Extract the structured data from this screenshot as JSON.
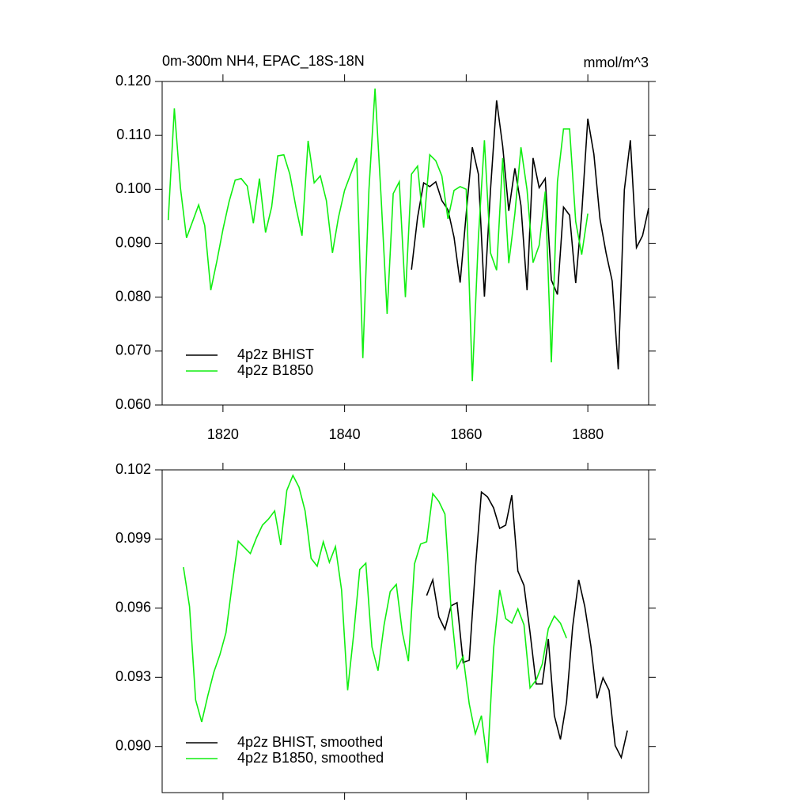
{
  "chart_data": [
    {
      "type": "line",
      "title": "0m-300m NH4, EPAC_18S-18N",
      "units": "mmol/m^3",
      "xlim": [
        1810,
        1890
      ],
      "xticks": [
        1820,
        1840,
        1860,
        1880
      ],
      "xtick_labels": true,
      "ylim": [
        0.06,
        0.12
      ],
      "yticks": [
        {
          "value": 0.06,
          "label": "0.060"
        },
        {
          "value": 0.07,
          "label": "0.070"
        },
        {
          "value": 0.08,
          "label": "0.080"
        },
        {
          "value": 0.09,
          "label": "0.090"
        },
        {
          "value": 0.1,
          "label": "0.100"
        },
        {
          "value": 0.11,
          "label": "0.110"
        },
        {
          "value": 0.12,
          "label": "0.120"
        }
      ],
      "legend": "lower left",
      "series": [
        {
          "name": "4p2z BHIST",
          "color": "#000000",
          "x": [
            1851,
            1852,
            1853,
            1854,
            1855,
            1856,
            1857,
            1858,
            1859,
            1860,
            1861,
            1862,
            1863,
            1864,
            1865,
            1866,
            1867,
            1868,
            1869,
            1870,
            1871,
            1872,
            1873,
            1874,
            1875,
            1876,
            1877,
            1878,
            1879,
            1880,
            1881,
            1882,
            1883,
            1884,
            1885,
            1886,
            1887,
            1888,
            1889,
            1890
          ],
          "values": [
            0.0851,
            0.0948,
            0.1012,
            0.1005,
            0.1014,
            0.0979,
            0.0962,
            0.0911,
            0.0827,
            0.0955,
            0.1078,
            0.1028,
            0.0801,
            0.0999,
            0.1165,
            0.108,
            0.096,
            0.1039,
            0.097,
            0.0813,
            0.1058,
            0.1003,
            0.102,
            0.0832,
            0.0805,
            0.0967,
            0.0952,
            0.0826,
            0.0955,
            0.1131,
            0.1065,
            0.0945,
            0.0882,
            0.083,
            0.0666,
            0.0999,
            0.1091,
            0.0892,
            0.0914,
            0.0965
          ]
        },
        {
          "name": "4p2z B1850",
          "color": "#11ee11",
          "x": [
            1811,
            1812,
            1813,
            1814,
            1815,
            1816,
            1817,
            1818,
            1819,
            1820,
            1821,
            1822,
            1823,
            1824,
            1825,
            1826,
            1827,
            1828,
            1829,
            1830,
            1831,
            1832,
            1833,
            1834,
            1835,
            1836,
            1837,
            1838,
            1839,
            1840,
            1841,
            1842,
            1843,
            1844,
            1845,
            1846,
            1847,
            1848,
            1849,
            1850,
            1851,
            1852,
            1853,
            1854,
            1855,
            1856,
            1857,
            1858,
            1859,
            1860,
            1861,
            1862,
            1863,
            1864,
            1865,
            1866,
            1867,
            1868,
            1869,
            1870,
            1871,
            1872,
            1873,
            1874,
            1875,
            1876,
            1877,
            1878,
            1879,
            1880
          ],
          "values": [
            0.0943,
            0.115,
            0.1003,
            0.091,
            0.094,
            0.0971,
            0.0933,
            0.0813,
            0.0867,
            0.0926,
            0.0977,
            0.1017,
            0.102,
            0.1006,
            0.0937,
            0.102,
            0.092,
            0.0967,
            0.1062,
            0.1064,
            0.1028,
            0.0967,
            0.0914,
            0.109,
            0.1012,
            0.1025,
            0.0979,
            0.0882,
            0.0948,
            0.0998,
            0.1028,
            0.1058,
            0.0687,
            0.0999,
            0.1187,
            0.0985,
            0.0769,
            0.0992,
            0.1014,
            0.08,
            0.1028,
            0.1043,
            0.0929,
            0.1064,
            0.1053,
            0.1025,
            0.0945,
            0.0998,
            0.1005,
            0.1,
            0.0644,
            0.0911,
            0.1091,
            0.0882,
            0.085,
            0.1058,
            0.0863,
            0.0955,
            0.1078,
            0.0999,
            0.0864,
            0.0896,
            0.0996,
            0.0679,
            0.1014,
            0.1112,
            0.1112,
            0.094,
            0.0879,
            0.0955
          ]
        }
      ]
    },
    {
      "type": "line",
      "xlim": [
        1810,
        1890
      ],
      "xticks": [
        1820,
        1840,
        1860,
        1880
      ],
      "xtick_labels": false,
      "ylim": [
        0.088,
        0.102
      ],
      "yticks": [
        {
          "value": 0.09,
          "label": "0.090"
        },
        0.093,
        0.096,
        0.099,
        0.102
      ],
      "legend": "lower left",
      "series": [
        {
          "name": "4p2z BHIST, smoothed",
          "color": "#000000",
          "x": [
            1853.5,
            1854.5,
            1855.5,
            1856.5,
            1857.5,
            1858.5,
            1859.5,
            1860.5,
            1861.5,
            1862.5,
            1863.5,
            1864.5,
            1865.5,
            1866.5,
            1867.5,
            1868.5,
            1869.5,
            1870.5,
            1871.5,
            1872.5,
            1873.5,
            1874.5,
            1875.5,
            1876.5,
            1877.5,
            1878.5,
            1879.5,
            1880.5,
            1881.5,
            1882.5,
            1883.5,
            1884.5,
            1885.5,
            1886.5
          ],
          "values": [
            0.09655,
            0.09723,
            0.09562,
            0.09508,
            0.0961,
            0.09624,
            0.09364,
            0.09374,
            0.09768,
            0.10104,
            0.10083,
            0.10035,
            0.09946,
            0.0996,
            0.1009,
            0.09761,
            0.09699,
            0.09494,
            0.09271,
            0.09271,
            0.09466,
            0.09134,
            0.09031,
            0.09192,
            0.09518,
            0.09723,
            0.09607,
            0.09436,
            0.09209,
            0.09298,
            0.09244,
            0.09004,
            0.08952,
            0.09069
          ]
        },
        {
          "name": "4p2z B1850, smoothed",
          "color": "#11ee11",
          "x": [
            1813.5,
            1814.5,
            1815.5,
            1816.5,
            1817.5,
            1818.5,
            1819.5,
            1820.5,
            1821.5,
            1822.5,
            1823.5,
            1824.5,
            1825.5,
            1826.5,
            1827.5,
            1828.5,
            1829.5,
            1830.5,
            1831.5,
            1832.5,
            1833.5,
            1834.5,
            1835.5,
            1836.5,
            1837.5,
            1838.5,
            1839.5,
            1840.5,
            1841.5,
            1842.5,
            1843.5,
            1844.5,
            1845.5,
            1846.5,
            1847.5,
            1848.5,
            1849.5,
            1850.5,
            1851.5,
            1852.5,
            1853.5,
            1854.5,
            1855.5,
            1856.5,
            1857.5,
            1858.5,
            1859.5,
            1860.5,
            1861.5,
            1862.5,
            1863.5,
            1864.5,
            1865.5,
            1866.5,
            1867.5,
            1868.5,
            1869.5,
            1870.5,
            1871.5,
            1872.5,
            1873.5,
            1874.5,
            1875.5,
            1876.5
          ],
          "values": [
            0.09778,
            0.09607,
            0.09202,
            0.09106,
            0.0922,
            0.09322,
            0.09398,
            0.09494,
            0.097,
            0.09891,
            0.09864,
            0.09837,
            0.09905,
            0.0996,
            0.09987,
            0.10022,
            0.09874,
            0.10111,
            0.10176,
            0.10125,
            0.10022,
            0.09816,
            0.09782,
            0.09888,
            0.09799,
            0.09867,
            0.09679,
            0.09244,
            0.0949,
            0.09768,
            0.09795,
            0.09432,
            0.09329,
            0.09528,
            0.09672,
            0.09703,
            0.09494,
            0.0937,
            0.09792,
            0.09878,
            0.09888,
            0.10097,
            0.10063,
            0.10008,
            0.09597,
            0.0934,
            0.09391,
            0.09185,
            0.09055,
            0.09134,
            0.08928,
            0.09425,
            0.09679,
            0.09555,
            0.09535,
            0.09597,
            0.09528,
            0.09254,
            0.09288,
            0.09357,
            0.09511,
            0.09566,
            0.09535,
            0.0947
          ]
        }
      ]
    }
  ]
}
